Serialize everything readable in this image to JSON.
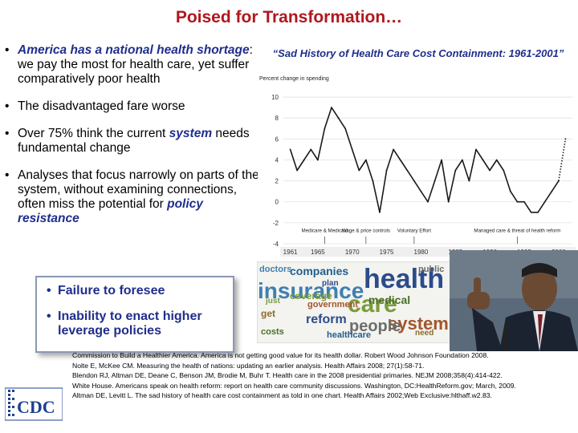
{
  "slide": {
    "title": "Poised for Transformation…",
    "bullets": {
      "b1_emph": "America has a national health shortage",
      "b1_rest": ": we pay the most for health care, yet suffer comparatively poor health",
      "b2": "The disadvantaged fare worse",
      "b3_a": "Over 75% think the current ",
      "b3_em": "system",
      "b3_b": " needs fundamental change",
      "b4_a": "Analyses that focus narrowly on parts of the system, without examining connections, often miss the potential for ",
      "b4_em": "policy resistance"
    },
    "callout": {
      "item1": "Failure to foresee",
      "item2": "Inability to enact higher leverage policies"
    },
    "references": [
      "Commission to Build a Healthier America. America is not getting good value for its health dollar. Robert Wood Johnson Foundation 2008.",
      "Nolte E, McKee CM.  Measuring the health of nations: updating an earlier analysis. Health Affairs 2008; 27(1):58-71.",
      "Blendon RJ, Altman DE, Deane C, Benson JM, Brodie M, Buhr T. Health care in the 2008 presidential primaries. NEJM 2008;358(4):414-422.",
      "White House. Americans speak on health reform: report on health care community discussions. Washington, DC:HealthReform.gov; March, 2009.",
      "Altman DE, Levitt L. The sad history of health care cost containment as told in one chart. Health Affairs 2002;Web Exclusive:hlthaff.w2.83."
    ],
    "logo_text": "CDC",
    "wordcloud": [
      "health",
      "care",
      "insurance",
      "system",
      "people",
      "medical",
      "companies",
      "get",
      "reform",
      "coverage",
      "doctors",
      "government",
      "public",
      "costs",
      "healthcare",
      "need",
      "plan",
      "just"
    ]
  },
  "chart_data": {
    "type": "line",
    "title": "“Sad History of Health Care Cost Containment: 1961-2001”",
    "ylabel": "Percent change in spending",
    "xlabel": "",
    "ylim": [
      -4,
      11
    ],
    "yticks": [
      -4,
      -2,
      0,
      2,
      4,
      6,
      8,
      10
    ],
    "x_ticks": [
      1961,
      1965,
      1970,
      1975,
      1980,
      1985,
      1990,
      1995,
      2000
    ],
    "series": [
      {
        "style": "solid",
        "x": [
          1961,
          1962,
          1963,
          1964,
          1965,
          1966,
          1967,
          1968,
          1969,
          1970,
          1971,
          1972,
          1973,
          1974,
          1975,
          1976,
          1977,
          1978,
          1979,
          1980,
          1981,
          1982,
          1983,
          1984,
          1985,
          1986,
          1987,
          1988,
          1989,
          1990,
          1991,
          1992,
          1993,
          1994,
          1995,
          1996,
          1997,
          1998,
          1999,
          2000
        ],
        "y": [
          5,
          3,
          4,
          5,
          4,
          7,
          9,
          8,
          7,
          5,
          3,
          4,
          2,
          -1,
          3,
          5,
          4,
          3,
          2,
          1,
          0,
          2,
          4,
          0,
          3,
          4,
          2,
          5,
          4,
          3,
          4,
          3,
          1,
          0,
          0,
          -1,
          -1,
          0,
          1,
          2
        ]
      },
      {
        "style": "dotted",
        "x": [
          2000,
          2001
        ],
        "y": [
          2,
          6
        ]
      }
    ],
    "annotations": [
      {
        "text": "Medicare & Medicaid",
        "x": 1966
      },
      {
        "text": "Wage & price controls",
        "x": 1972
      },
      {
        "text": "Voluntary Effort",
        "x": 1979
      },
      {
        "text": "Managed care & threat of health reform",
        "x": 1994
      }
    ],
    "colors": {
      "line": "#1a1a1a",
      "title": "#1f2e8c"
    }
  }
}
